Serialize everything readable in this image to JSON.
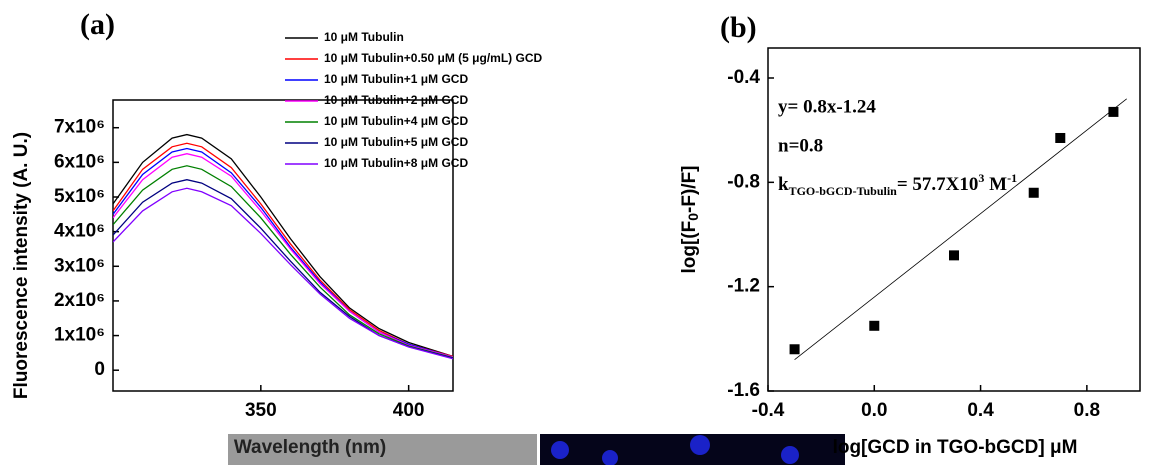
{
  "chart_data": [
    {
      "type": "line",
      "title": "(a)",
      "x_label": "Wavelength (nm)",
      "y_label": "Fluorescence intensity (A. U.)",
      "x": [
        300,
        310,
        320,
        325,
        330,
        340,
        350,
        360,
        370,
        380,
        390,
        400,
        415
      ],
      "series": [
        {
          "name": "10 μM Tubulin",
          "color": "#000000",
          "values": [
            4800000,
            6000000,
            6700000,
            6800000,
            6700000,
            6100000,
            5000000,
            3800000,
            2700000,
            1800000,
            1200000,
            800000,
            400000
          ]
        },
        {
          "name": "10 μM Tubulin+0.50 μM (5 μg/mL) GCD",
          "color": "#ff0000",
          "values": [
            4600000,
            5800000,
            6450000,
            6550000,
            6450000,
            5850000,
            4800000,
            3650000,
            2600000,
            1750000,
            1150000,
            750000,
            400000
          ]
        },
        {
          "name": "10 μM Tubulin+1 μM GCD",
          "color": "#0000ff",
          "values": [
            4500000,
            5650000,
            6300000,
            6400000,
            6300000,
            5700000,
            4700000,
            3550000,
            2550000,
            1700000,
            1100000,
            750000,
            380000
          ]
        },
        {
          "name": "10 μM Tubulin+2 μM GCD",
          "color": "#ff00ff",
          "values": [
            4400000,
            5500000,
            6150000,
            6250000,
            6150000,
            5600000,
            4600000,
            3500000,
            2500000,
            1700000,
            1100000,
            720000,
            380000
          ]
        },
        {
          "name": "10 μM Tubulin+4 μM GCD",
          "color": "#008000",
          "values": [
            4200000,
            5200000,
            5800000,
            5900000,
            5800000,
            5300000,
            4400000,
            3350000,
            2400000,
            1600000,
            1050000,
            700000,
            360000
          ]
        },
        {
          "name": "10 μM Tubulin+5 μM GCD",
          "color": "#000080",
          "values": [
            3900000,
            4850000,
            5400000,
            5500000,
            5400000,
            4950000,
            4100000,
            3150000,
            2250000,
            1550000,
            1000000,
            680000,
            350000
          ]
        },
        {
          "name": "10 μM Tubulin+8 μM GCD",
          "color": "#8000ff",
          "values": [
            3700000,
            4600000,
            5150000,
            5250000,
            5150000,
            4750000,
            3950000,
            3050000,
            2200000,
            1500000,
            1000000,
            670000,
            330000
          ]
        }
      ],
      "xlim": [
        300,
        415
      ],
      "xticks": [
        350,
        400
      ],
      "ylim": [
        -600000,
        7800000
      ],
      "yticks": [
        0,
        {
          "value": 1000000,
          "label": "1x10⁶"
        },
        {
          "value": 2000000,
          "label": "2x10⁶"
        },
        {
          "value": 3000000,
          "label": "3x10⁶"
        },
        {
          "value": 4000000,
          "label": "4x10⁶"
        },
        {
          "value": 5000000,
          "label": "5x10⁶"
        },
        {
          "value": 6000000,
          "label": "6x10⁶"
        },
        {
          "value": 7000000,
          "label": "7x10⁶"
        }
      ],
      "grid": false,
      "legend": "top-right"
    },
    {
      "type": "scatter",
      "title": "(b)",
      "x_label": "log[GCD in TGO-bGCD] μM",
      "y_label": [
        "log",
        "[(F",
        "0",
        "-F)/F]"
      ],
      "x": [
        -0.3,
        0,
        0.3,
        0.6,
        0.7,
        0.9
      ],
      "values": [
        -1.44,
        -1.35,
        -1.08,
        -0.84,
        -0.63,
        -0.53
      ],
      "color": "#000000",
      "fit": {
        "x": [
          -0.3,
          0.95
        ],
        "values": [
          -1.48,
          -0.48
        ]
      },
      "annotations": {
        "equation": "y= 0.8x-1.24",
        "n": "n=0.8",
        "k": [
          "k",
          "TGO-bGCD-Tubulin",
          "= 57.7X10",
          "3",
          " M",
          "-1"
        ]
      },
      "xlim": [
        -0.4,
        1.0
      ],
      "xticks": [
        -0.4,
        {
          "value": 0,
          "label": "0.0"
        },
        0.4,
        0.8
      ],
      "ylim": [
        -1.6,
        -0.285
      ],
      "yticks": [
        -0.4,
        -0.8,
        -1.2,
        -1.6
      ],
      "grid": false
    }
  ]
}
